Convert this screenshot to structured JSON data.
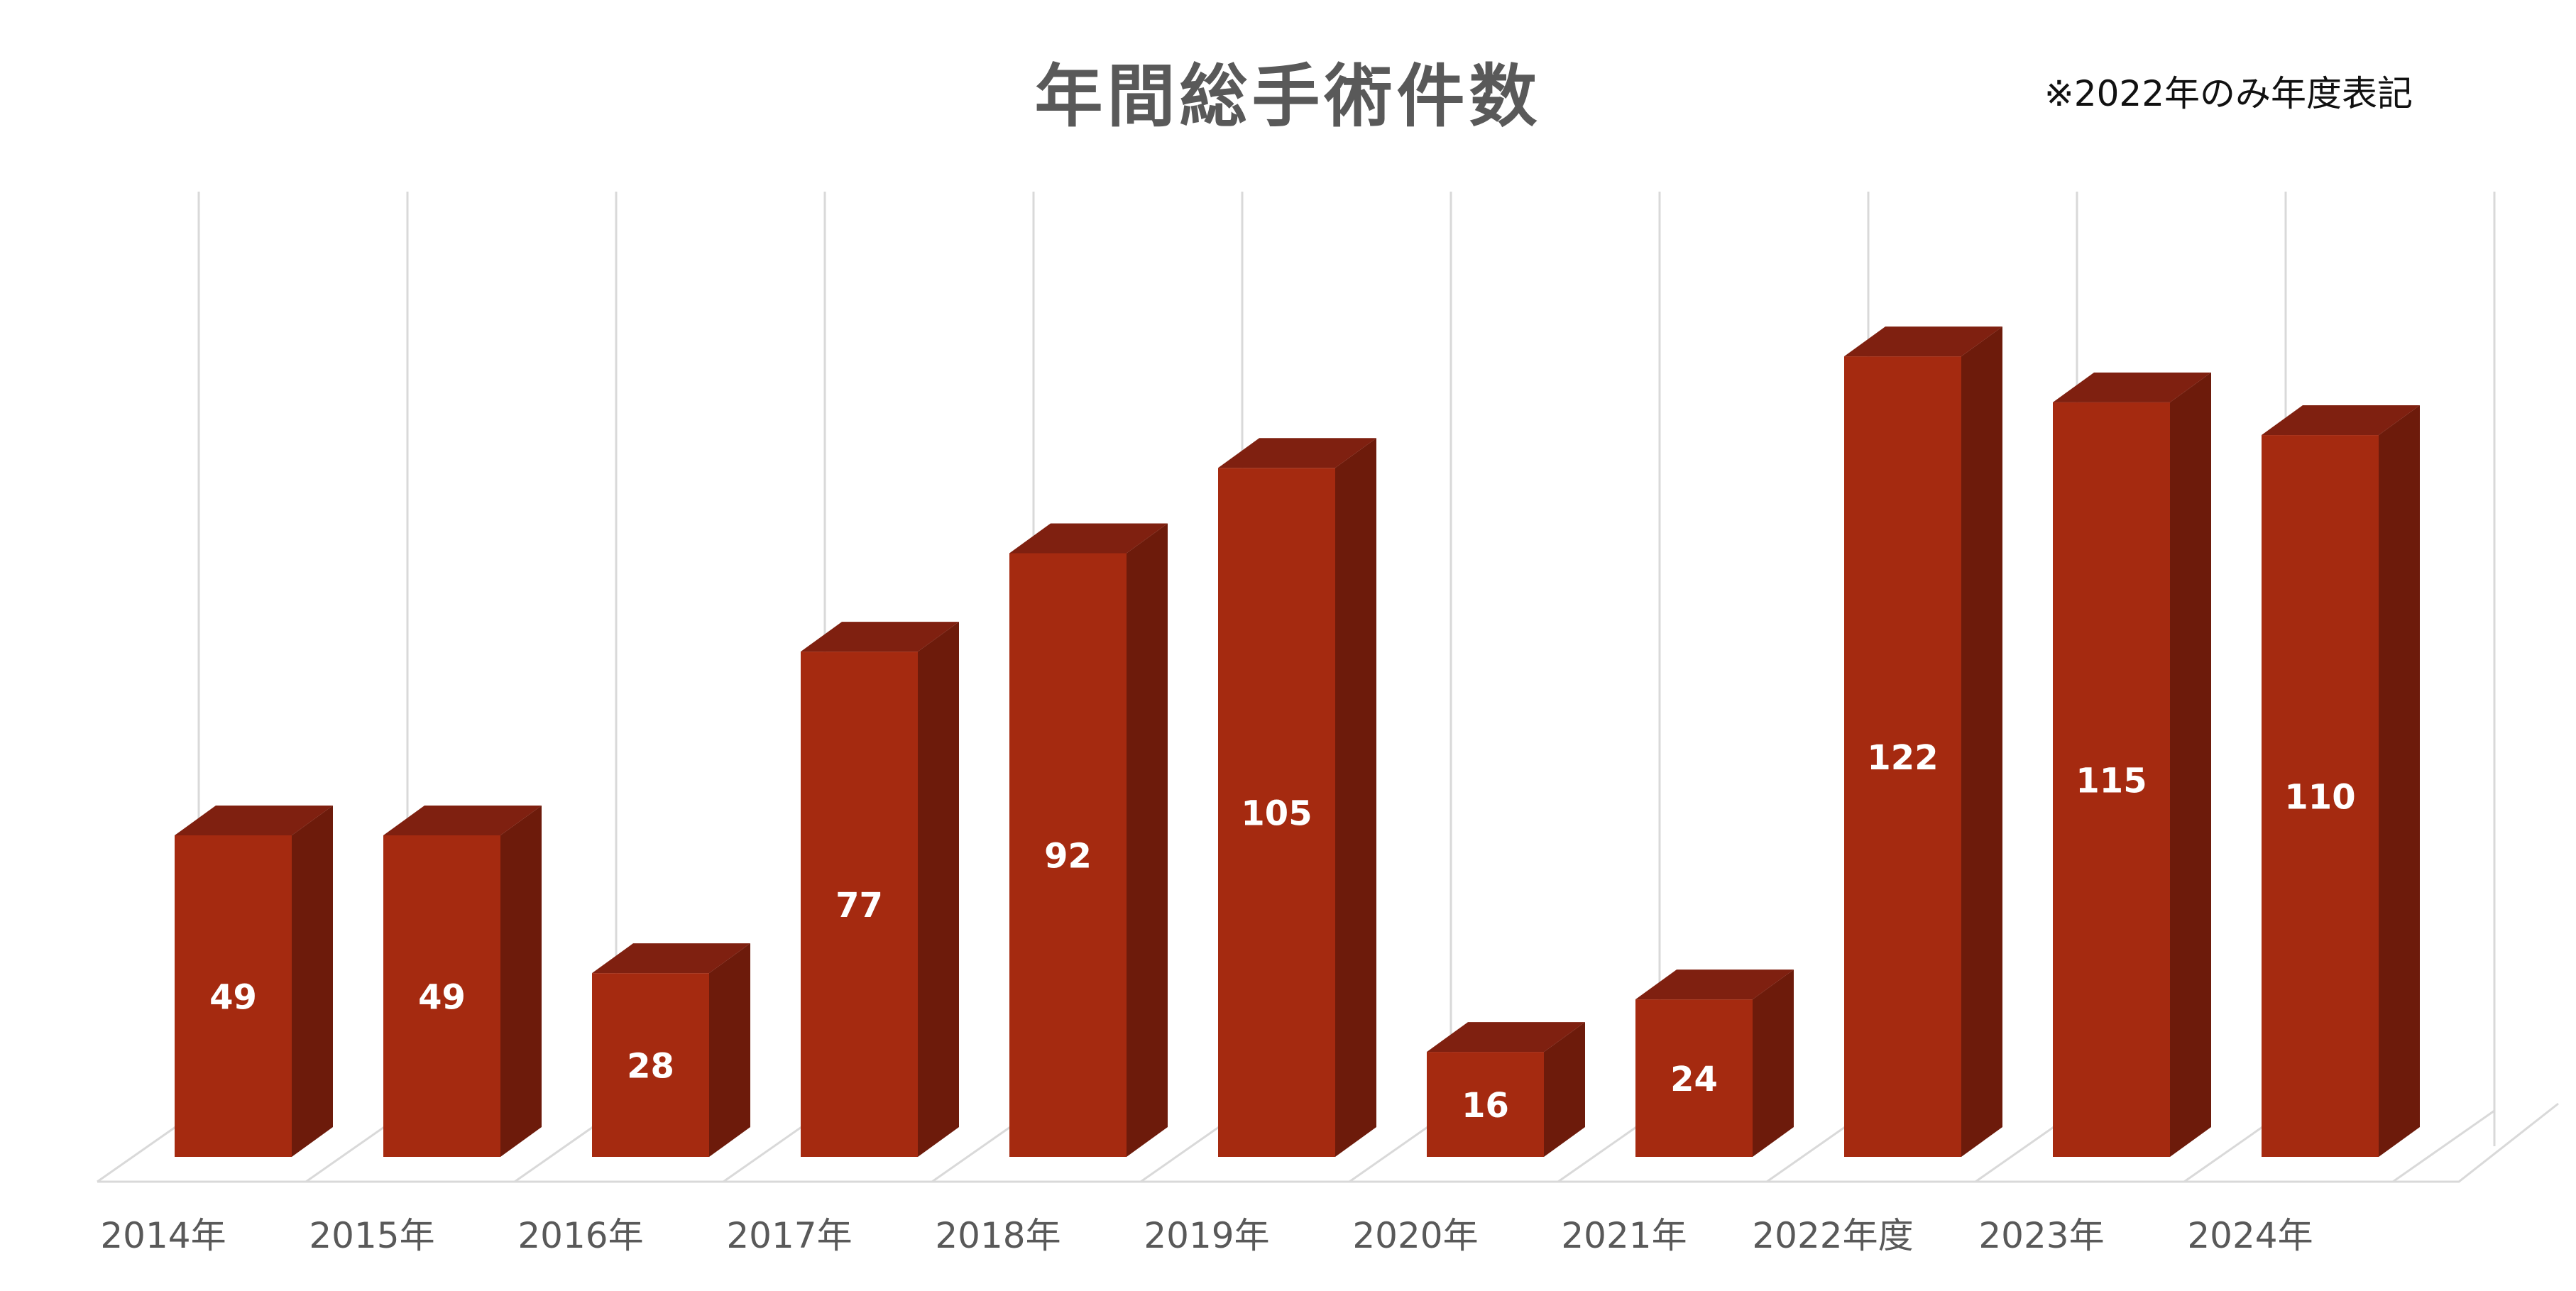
{
  "chart_data": {
    "type": "bar",
    "title": "年間総手術件数",
    "note": "※2022年のみ年度表記",
    "xlabel": "",
    "ylabel": "",
    "categories": [
      "2014年",
      "2015年",
      "2016年",
      "2017年",
      "2018年",
      "2019年",
      "2020年",
      "2021年",
      "2022年度",
      "2023年",
      "2024年"
    ],
    "series": [
      {
        "values": [
          49,
          49,
          28,
          77,
          92,
          105,
          16,
          24,
          122,
          115,
          110
        ]
      }
    ],
    "ylim": [
      0,
      140
    ],
    "grid": true,
    "legend": "none",
    "style": "3d-column",
    "data_labels": true
  },
  "colors": {
    "bar_front": "#a52a10",
    "bar_side": "#6d1b0b",
    "bar_top": "#7f2010",
    "gridline": "#d9d9d9",
    "title": "#595959",
    "tick_label": "#595959",
    "data_label": "#ffffff"
  }
}
